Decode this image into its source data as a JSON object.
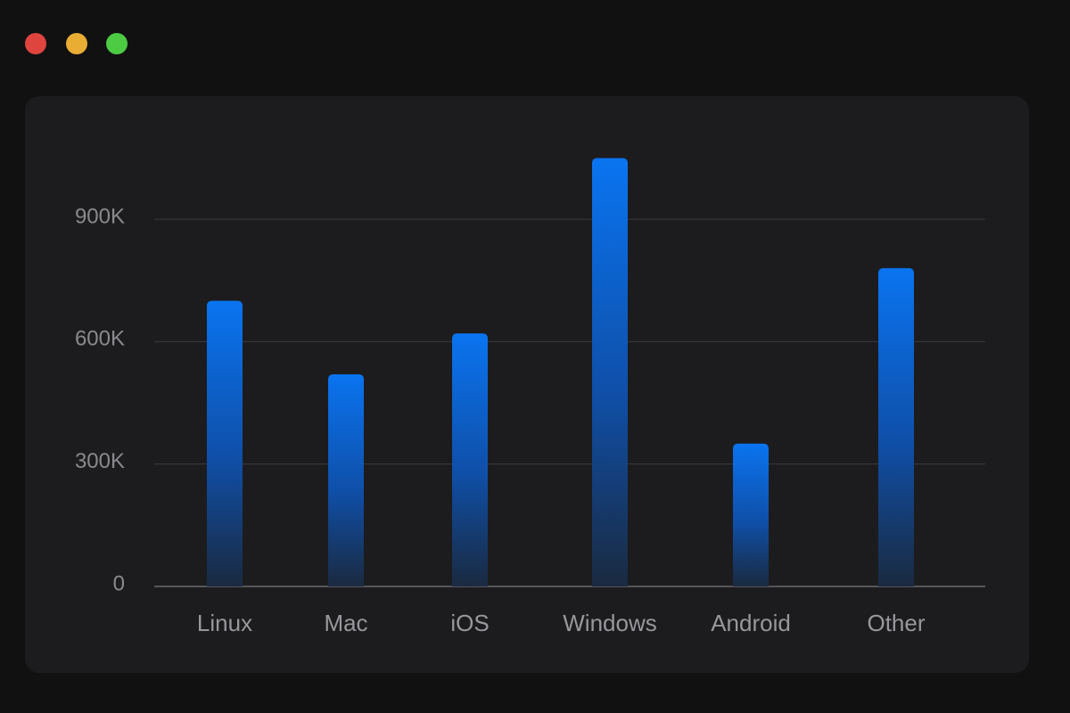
{
  "chart_data": {
    "type": "bar",
    "categories": [
      "Linux",
      "Mac",
      "iOS",
      "Windows",
      "Android",
      "Other"
    ],
    "values": [
      700000,
      520000,
      620000,
      1050000,
      350000,
      780000
    ],
    "color": "#0a74f0",
    "ylim": [
      0,
      1100000
    ],
    "yticks": [
      0,
      {
        "value": 300000,
        "label": "300K"
      },
      {
        "value": 600000,
        "label": "600K"
      },
      {
        "value": 900000,
        "label": "900K"
      }
    ],
    "grid": true
  }
}
